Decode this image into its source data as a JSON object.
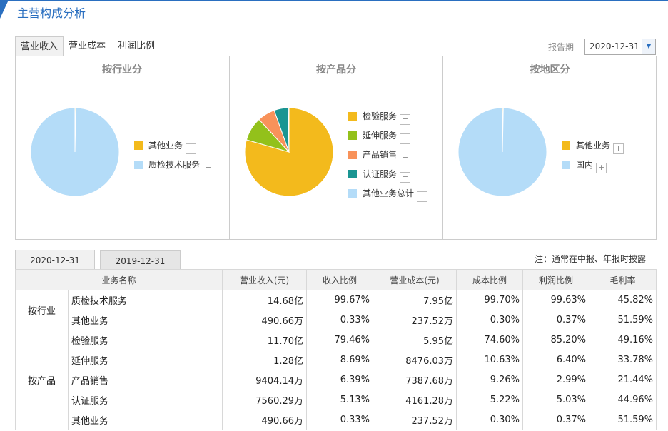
{
  "header": {
    "title": "主营构成分析"
  },
  "tabs": [
    {
      "label": "营业收入",
      "active": true
    },
    {
      "label": "营业成本",
      "active": false
    },
    {
      "label": "利润比例",
      "active": false
    }
  ],
  "period": {
    "label": "报告期",
    "value": "2020-12-31"
  },
  "chart_data": [
    {
      "type": "pie",
      "title": "按行业分",
      "labels": [
        "其他业务",
        "质检技术服务"
      ],
      "values": [
        0.33,
        99.67
      ],
      "colors": [
        "#f3ba1c",
        "#b4dcf8"
      ]
    },
    {
      "type": "pie",
      "title": "按产品分",
      "labels": [
        "检验服务",
        "延伸服务",
        "产品销售",
        "认证服务",
        "其他业务总计"
      ],
      "values": [
        79.46,
        8.69,
        6.39,
        5.13,
        0.33
      ],
      "colors": [
        "#f3ba1c",
        "#93c11b",
        "#f8925a",
        "#1a9592",
        "#b4dcf8"
      ]
    },
    {
      "type": "pie",
      "title": "按地区分",
      "labels": [
        "其他业务",
        "国内"
      ],
      "values": [
        0.33,
        99.67
      ],
      "colors": [
        "#f3ba1c",
        "#b4dcf8"
      ]
    }
  ],
  "date_tabs": [
    {
      "label": "2020-12-31",
      "active": true
    },
    {
      "label": "2019-12-31",
      "active": false
    }
  ],
  "note": "注：通常在中报、年报时披露",
  "table": {
    "columns": [
      "业务名称",
      "营业收入(元)",
      "收入比例",
      "营业成本(元)",
      "成本比例",
      "利润比例",
      "毛利率"
    ],
    "groups": [
      {
        "name": "按行业",
        "rows": [
          [
            "质检技术服务",
            "14.68亿",
            "99.67%",
            "7.95亿",
            "99.70%",
            "99.63%",
            "45.82%"
          ],
          [
            "其他业务",
            "490.66万",
            "0.33%",
            "237.52万",
            "0.30%",
            "0.37%",
            "51.59%"
          ]
        ]
      },
      {
        "name": "按产品",
        "rows": [
          [
            "检验服务",
            "11.70亿",
            "79.46%",
            "5.95亿",
            "74.60%",
            "85.20%",
            "49.16%"
          ],
          [
            "延伸服务",
            "1.28亿",
            "8.69%",
            "8476.03万",
            "10.63%",
            "6.40%",
            "33.78%"
          ],
          [
            "产品销售",
            "9404.14万",
            "6.39%",
            "7387.68万",
            "9.26%",
            "2.99%",
            "21.44%"
          ],
          [
            "认证服务",
            "7560.29万",
            "5.13%",
            "4161.28万",
            "5.22%",
            "5.03%",
            "44.96%"
          ],
          [
            "其他业务",
            "490.66万",
            "0.33%",
            "237.52万",
            "0.30%",
            "0.37%",
            "51.59%"
          ]
        ]
      }
    ]
  }
}
